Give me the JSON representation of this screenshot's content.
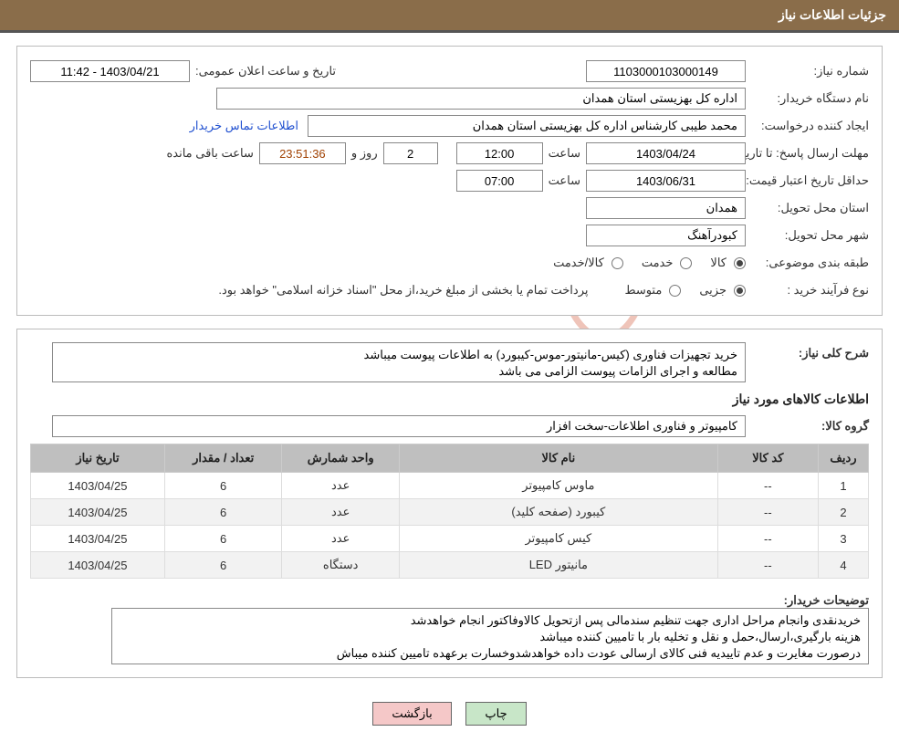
{
  "header": {
    "title": "جزئیات اطلاعات نیاز"
  },
  "fields": {
    "need_no_label": "شماره نیاز:",
    "need_no": "1103000103000149",
    "announce_label": "تاریخ و ساعت اعلان عمومی:",
    "announce_value": "1403/04/21 - 11:42",
    "buyer_org_label": "نام دستگاه خریدار:",
    "buyer_org": "اداره کل بهزیستی استان همدان",
    "requester_label": "ایجاد کننده درخواست:",
    "requester": "محمد طیبی کارشناس اداره کل بهزیستی استان همدان",
    "contact_link": "اطلاعات تماس خریدار",
    "deadline_label": "مهلت ارسال پاسخ:",
    "to_date_label": "تا تاریخ:",
    "deadline_date": "1403/04/24",
    "time_label": "ساعت",
    "deadline_time": "12:00",
    "days_remaining": "2",
    "days_and_label": "روز و",
    "timer": "23:51:36",
    "remaining_label": "ساعت باقی مانده",
    "min_validity_label": "حداقل تاریخ اعتبار قیمت:",
    "min_validity_date": "1403/06/31",
    "min_validity_time": "07:00",
    "province_label": "استان محل تحویل:",
    "province": "همدان",
    "city_label": "شهر محل تحویل:",
    "city": "کبودرآهنگ",
    "category_label": "طبقه بندی موضوعی:",
    "cat_goods": "کالا",
    "cat_service": "خدمت",
    "cat_goods_service": "کالا/خدمت",
    "purchase_type_label": "نوع فرآیند خرید :",
    "pt_partial": "جزیی",
    "pt_medium": "متوسط",
    "purchase_note": "پرداخت تمام یا بخشی از مبلغ خرید،از محل \"اسناد خزانه اسلامی\" خواهد بود."
  },
  "description": {
    "need_desc_label": "شرح کلی نیاز:",
    "need_desc": "خرید تجهیزات فناوری (کیس-مانیتور-موس-کیبورد) به اطلاعات پیوست میباشد\nمطالعه و اجرای الزامات پیوست الزامی می باشد",
    "items_title": "اطلاعات کالاهای مورد نیاز",
    "group_label": "گروه کالا:",
    "group_value": "کامپیوتر و فناوری اطلاعات-سخت افزار"
  },
  "table": {
    "columns": [
      "ردیف",
      "کد کالا",
      "نام کالا",
      "واحد شمارش",
      "تعداد / مقدار",
      "تاریخ نیاز"
    ],
    "col_widths": [
      "6%",
      "12%",
      "38%",
      "14%",
      "14%",
      "16%"
    ],
    "rows": [
      [
        "1",
        "--",
        "ماوس کامپیوتر",
        "عدد",
        "6",
        "1403/04/25"
      ],
      [
        "2",
        "--",
        "کیبورد (صفحه کلید)",
        "عدد",
        "6",
        "1403/04/25"
      ],
      [
        "3",
        "--",
        "کیس کامپیوتر",
        "عدد",
        "6",
        "1403/04/25"
      ],
      [
        "4",
        "--",
        "مانیتور LED",
        "دستگاه",
        "6",
        "1403/04/25"
      ]
    ]
  },
  "buyer_notes": {
    "label": "توضیحات خریدار:",
    "text": "خریدنقدی وانجام مراحل اداری جهت تنظیم سندمالی پس ازتحویل کالاوفاکتور انجام خواهدشد\nهزینه بارگیری،ارسال،حمل و نقل و تخلیه بار با تامیین کننده میباشد\nدرصورت مغایرت و عدم تاییدیه فنی کالای ارسالی عودت داده خواهدشدوخسارت برعهده تامیین کننده میباش"
  },
  "buttons": {
    "print": "چاپ",
    "back": "بازگشت"
  },
  "watermark": {
    "text_pre": "Aria",
    "text_hi": "Tender",
    "text_post": ".net",
    "shield_color": "#d45a3a"
  },
  "colors": {
    "header_bg": "#8a6d4a",
    "table_header_bg": "#bfbfbf",
    "link": "#2050d0",
    "timer": "#a04000",
    "btn_green": "#c8e6c8",
    "btn_red": "#f5c8c8"
  }
}
